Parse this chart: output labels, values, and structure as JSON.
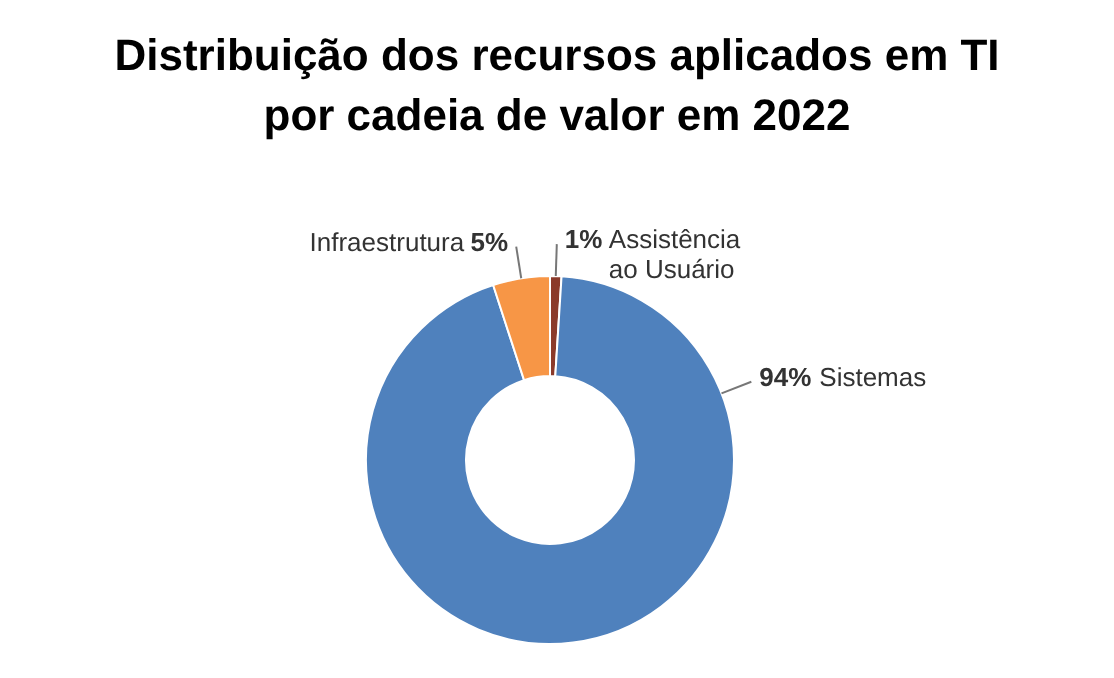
{
  "chart_data": {
    "type": "donut",
    "title": "Distribuição dos recursos aplicados em TI por cadeia de valor em 2022",
    "categories": [
      "Assistência ao Usuário",
      "Sistemas",
      "Infraestrutura"
    ],
    "values": [
      1,
      94,
      5
    ],
    "colors": [
      "#8b3a2a",
      "#4f81bd",
      "#f79646"
    ],
    "value_labels": [
      "1%",
      "94%",
      "5%"
    ]
  }
}
